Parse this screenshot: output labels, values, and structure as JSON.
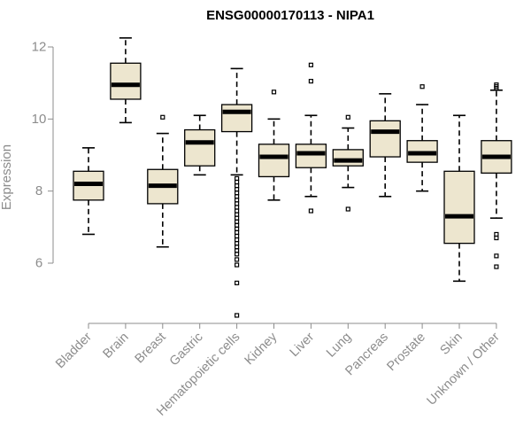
{
  "chart_data": {
    "type": "boxplot",
    "title": "ENSG00000170113 - NIPA1",
    "xlabel": "",
    "ylabel": "Expression",
    "ylim": [
      4.2,
      12.6
    ],
    "yticks": [
      6,
      8,
      10,
      12
    ],
    "box_fill": "#ede6cf",
    "categories": [
      "Bladder",
      "Brain",
      "Breast",
      "Gastric",
      "Hematopoietic cells",
      "Kidney",
      "Liver",
      "Lung",
      "Pancreas",
      "Prostate",
      "Skin",
      "Unknown / Other"
    ],
    "boxes": [
      {
        "category": "Bladder",
        "min": 6.8,
        "q1": 7.75,
        "median": 8.2,
        "q3": 8.55,
        "max": 9.2,
        "outliers": []
      },
      {
        "category": "Brain",
        "min": 9.9,
        "q1": 10.55,
        "median": 10.95,
        "q3": 11.55,
        "max": 12.25,
        "outliers": []
      },
      {
        "category": "Breast",
        "min": 6.45,
        "q1": 7.65,
        "median": 8.15,
        "q3": 8.6,
        "max": 9.6,
        "outliers": [
          10.05
        ]
      },
      {
        "category": "Gastric",
        "min": 8.45,
        "q1": 8.7,
        "median": 9.35,
        "q3": 9.7,
        "max": 10.1,
        "outliers": []
      },
      {
        "category": "Hematopoietic cells",
        "min": 8.45,
        "q1": 9.65,
        "median": 10.2,
        "q3": 10.4,
        "max": 11.4,
        "outliers": [
          8.35,
          8.25,
          8.15,
          8.05,
          7.95,
          7.85,
          7.75,
          7.65,
          7.55,
          7.45,
          7.35,
          7.25,
          7.15,
          7.05,
          6.95,
          6.85,
          6.75,
          6.65,
          6.55,
          6.45,
          6.35,
          6.25,
          6.1,
          5.95,
          5.45,
          4.55
        ]
      },
      {
        "category": "Kidney",
        "min": 7.75,
        "q1": 8.4,
        "median": 8.95,
        "q3": 9.3,
        "max": 10.0,
        "outliers": [
          10.75
        ]
      },
      {
        "category": "Liver",
        "min": 7.85,
        "q1": 8.65,
        "median": 9.05,
        "q3": 9.3,
        "max": 10.1,
        "outliers": [
          7.45,
          11.05,
          11.5
        ]
      },
      {
        "category": "Lung",
        "min": 8.1,
        "q1": 8.7,
        "median": 8.85,
        "q3": 9.15,
        "max": 9.75,
        "outliers": [
          7.5,
          10.05
        ]
      },
      {
        "category": "Pancreas",
        "min": 7.85,
        "q1": 8.95,
        "median": 9.65,
        "q3": 9.95,
        "max": 10.7,
        "outliers": []
      },
      {
        "category": "Prostate",
        "min": 8.0,
        "q1": 8.8,
        "median": 9.05,
        "q3": 9.4,
        "max": 10.4,
        "outliers": [
          10.9
        ]
      },
      {
        "category": "Skin",
        "min": 5.5,
        "q1": 6.55,
        "median": 7.3,
        "q3": 8.55,
        "max": 10.1,
        "outliers": []
      },
      {
        "category": "Unknown / Other",
        "min": 7.25,
        "q1": 8.5,
        "median": 8.95,
        "q3": 9.4,
        "max": 10.8,
        "outliers": [
          10.85,
          10.9,
          10.95,
          6.8,
          6.7,
          6.2,
          5.9
        ]
      }
    ]
  }
}
